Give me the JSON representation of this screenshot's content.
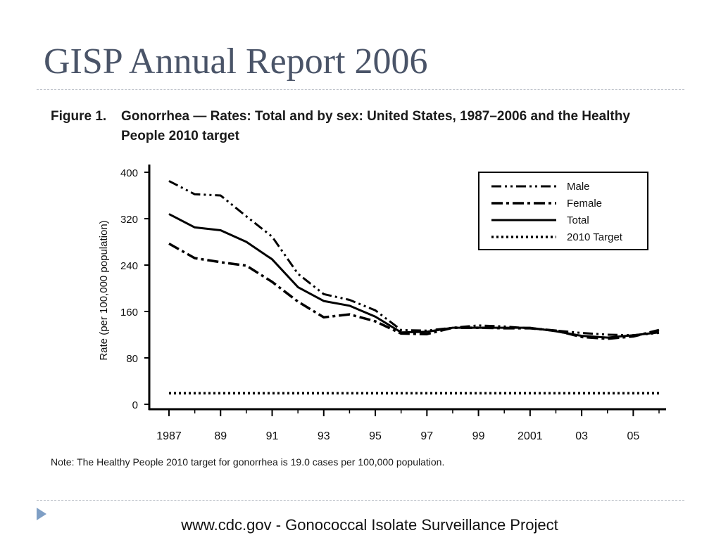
{
  "slide": {
    "title": "GISP Annual Report 2006",
    "footer": "www.cdc.gov  -  Gonococcal Isolate Surveillance Project"
  },
  "figure": {
    "label": "Figure 1.",
    "caption": "Gonorrhea — Rates: Total and by sex: United States, 1987–2006 and the Healthy People 2010 target",
    "note": "Note: The Healthy People 2010 target for gonorrhea is 19.0 cases per 100,000 population."
  },
  "chart_data": {
    "type": "line",
    "title": "",
    "xlabel": "",
    "ylabel": "Rate (per 100,000 population)",
    "x": [
      1987,
      1988,
      1989,
      1990,
      1991,
      1992,
      1993,
      1994,
      1995,
      1996,
      1997,
      1998,
      1999,
      2000,
      2001,
      2002,
      2003,
      2004,
      2005,
      2006
    ],
    "x_tick_values": [
      1987,
      1989,
      1991,
      1993,
      1995,
      1997,
      1999,
      2001,
      2003,
      2005
    ],
    "x_tick_labels": [
      "1987",
      "89",
      "91",
      "93",
      "95",
      "97",
      "99",
      "2001",
      "03",
      "05"
    ],
    "ylim": [
      0,
      400
    ],
    "y_ticks": [
      0,
      80,
      160,
      240,
      320,
      400
    ],
    "grid": false,
    "legend_position": "top-right",
    "series": [
      {
        "name": "Male",
        "style": "dash-dot-dot",
        "values": [
          385,
          362,
          360,
          324,
          289,
          225,
          190,
          180,
          162,
          128,
          127,
          132,
          136,
          134,
          131,
          127,
          123,
          120,
          119,
          123
        ]
      },
      {
        "name": "Female",
        "style": "dash-dot-thick",
        "values": [
          277,
          252,
          245,
          239,
          211,
          177,
          150,
          155,
          143,
          122,
          121,
          132,
          132,
          131,
          131,
          127,
          116,
          113,
          117,
          128
        ]
      },
      {
        "name": "Total",
        "style": "solid",
        "values": [
          328,
          305,
          300,
          280,
          250,
          202,
          178,
          170,
          151,
          124,
          125,
          132,
          132,
          132,
          132,
          126,
          118,
          115,
          119,
          124
        ]
      },
      {
        "name": "2010 Target",
        "style": "dotted",
        "values": [
          19,
          19,
          19,
          19,
          19,
          19,
          19,
          19,
          19,
          19,
          19,
          19,
          19,
          19,
          19,
          19,
          19,
          19,
          19,
          19
        ]
      }
    ]
  }
}
